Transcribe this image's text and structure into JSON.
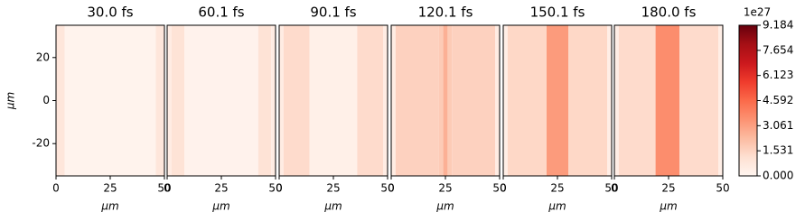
{
  "chart_data": [
    {
      "type": "heatmap",
      "title": "30.0 fs",
      "xlabel": "μm",
      "ylabel": "μm",
      "xlim": [
        0,
        50
      ],
      "ylim": [
        -35,
        35
      ],
      "xticks": [
        0,
        25,
        50
      ],
      "yticks": [
        -20,
        0,
        20
      ],
      "colormap": "Reds",
      "x_edges": [
        0,
        4,
        46,
        50
      ],
      "values": [
        0.8,
        0.1,
        0.8
      ]
    },
    {
      "type": "heatmap",
      "title": "60.1 fs",
      "xlabel": "μm",
      "xlim": [
        0,
        50
      ],
      "ylim": [
        -35,
        35
      ],
      "xticks": [
        0,
        25,
        50
      ],
      "colormap": "Reds",
      "x_edges": [
        0,
        2,
        8,
        42,
        48,
        50
      ],
      "values": [
        0.5,
        1.0,
        0.15,
        1.0,
        0.5
      ]
    },
    {
      "type": "heatmap",
      "title": "90.1 fs",
      "xlabel": "μm",
      "xlim": [
        0,
        50
      ],
      "ylim": [
        -35,
        35
      ],
      "xticks": [
        0,
        25,
        50
      ],
      "colormap": "Reds",
      "x_edges": [
        0,
        2,
        14,
        36,
        48,
        50
      ],
      "values": [
        0.5,
        1.3,
        0.3,
        1.3,
        0.5
      ]
    },
    {
      "type": "heatmap",
      "title": "120.1 fs",
      "xlabel": "μm",
      "xlim": [
        0,
        50
      ],
      "ylim": [
        -35,
        35
      ],
      "xticks": [
        0,
        25,
        50
      ],
      "colormap": "Reds",
      "x_edges": [
        0,
        2,
        22,
        24,
        26,
        28,
        48,
        50
      ],
      "values": [
        0.5,
        1.6,
        1.8,
        2.6,
        1.8,
        1.6,
        0.5
      ]
    },
    {
      "type": "heatmap",
      "title": "150.1 fs",
      "xlabel": "μm",
      "xlim": [
        0,
        50
      ],
      "ylim": [
        -35,
        35
      ],
      "xticks": [
        0,
        25,
        50
      ],
      "colormap": "Reds",
      "x_edges": [
        0,
        2,
        20,
        30,
        48,
        50
      ],
      "values": [
        0.4,
        1.4,
        3.2,
        1.4,
        0.4
      ]
    },
    {
      "type": "heatmap",
      "title": "180.0 fs",
      "xlabel": "μm",
      "xlim": [
        0,
        50
      ],
      "ylim": [
        -35,
        35
      ],
      "xticks": [
        0,
        25,
        50
      ],
      "colormap": "Reds",
      "x_edges": [
        0,
        2,
        19,
        30,
        48,
        50
      ],
      "values": [
        0.4,
        1.3,
        3.6,
        1.3,
        0.4
      ]
    },
    {
      "type": "colorbar",
      "offset_label": "1e27",
      "colormap": "Reds",
      "clim": [
        0,
        9.184
      ],
      "ticks": [
        {
          "value": 0,
          "label": "0.000"
        },
        1.531,
        3.061,
        4.592,
        6.123,
        7.654,
        9.184
      ]
    }
  ]
}
